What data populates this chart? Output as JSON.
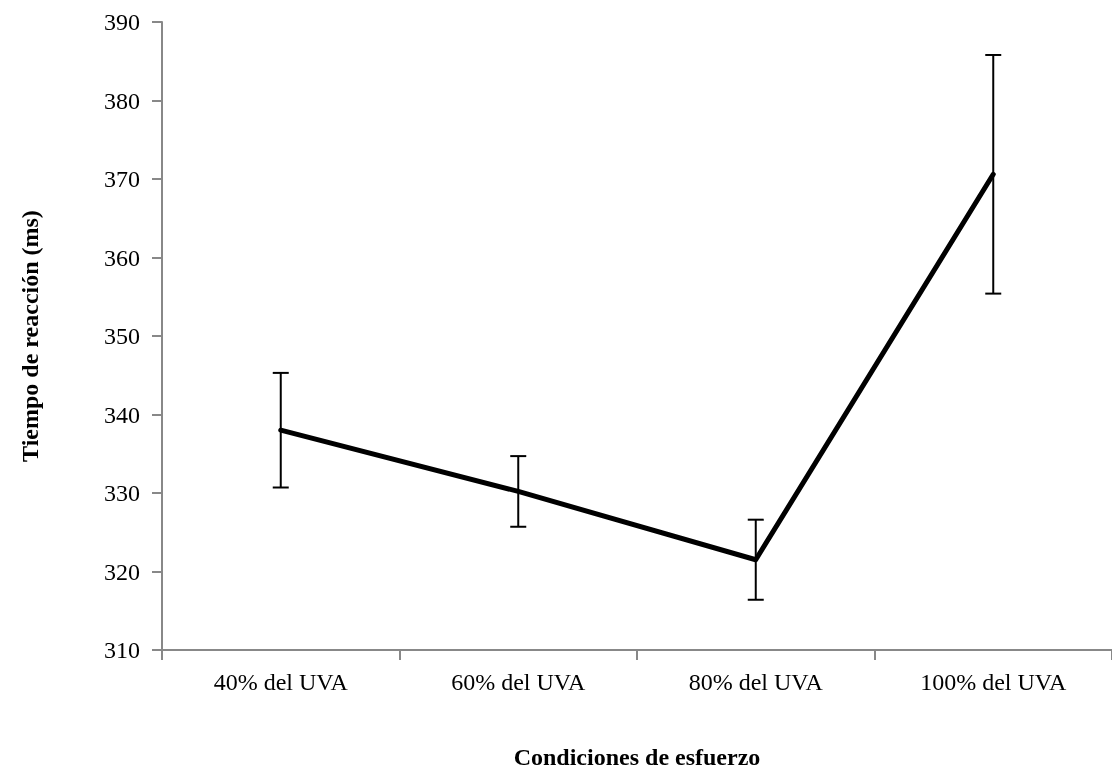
{
  "chart_data": {
    "type": "line",
    "xlabel": "Condiciones de esfuerzo",
    "ylabel": "Tiempo de reacción (ms)",
    "categories": [
      "40% del UVA",
      "60% del UVA",
      "80% del UVA",
      "100% del UVA"
    ],
    "series": [
      {
        "color": "#000000",
        "values": [
          338,
          330.2,
          321.5,
          370.6
        ],
        "errors": [
          7.3,
          4.5,
          5.1,
          15.2
        ]
      }
    ],
    "ylim": [
      310,
      390
    ],
    "yticks": [
      310,
      320,
      330,
      340,
      350,
      360,
      370,
      380,
      390
    ],
    "grid": false,
    "marker": "none",
    "line_style": "solid"
  }
}
